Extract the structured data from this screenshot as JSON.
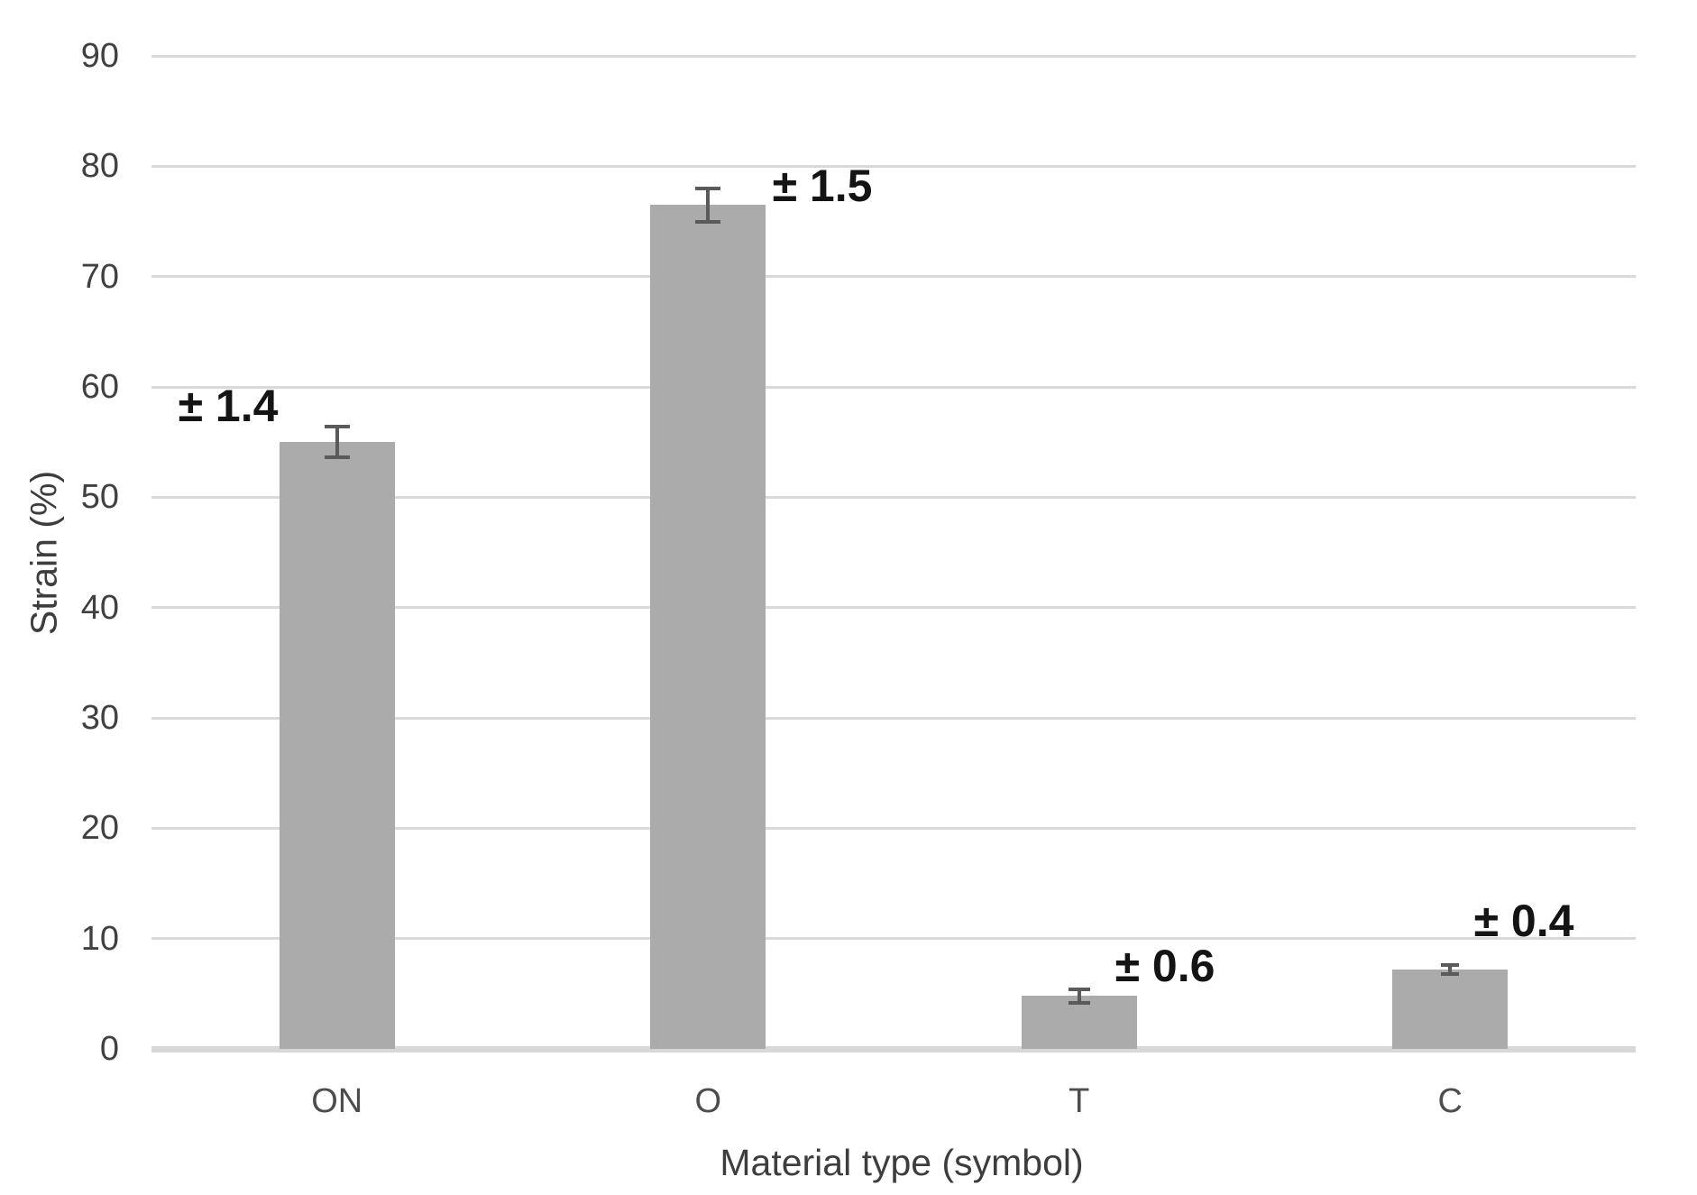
{
  "chart_data": {
    "type": "bar",
    "title": "",
    "xlabel": "Material type (symbol)",
    "ylabel": "Strain (%)",
    "categories": [
      "ON",
      "O",
      "T",
      "C"
    ],
    "values": [
      55,
      76.5,
      4.8,
      7.2
    ],
    "errors": [
      1.4,
      1.5,
      0.6,
      0.4
    ],
    "error_labels": [
      "± 1.4",
      "± 1.5",
      "± 0.6",
      "± 0.4"
    ],
    "ylim": [
      0,
      90
    ],
    "ytick_interval": 10,
    "yticks": [
      0,
      10,
      20,
      30,
      40,
      50,
      60,
      70,
      80,
      90
    ],
    "grid": true,
    "legend": "none",
    "bar_color": "#ababab",
    "error_bar_color": "#5a5a5a",
    "gridline_color": "#d9d9d9",
    "axis_line_color": "#d8d8d8",
    "tick_text_color": "#404040",
    "title_text_color": "#3d3d3d",
    "error_label_color": "#141414"
  }
}
